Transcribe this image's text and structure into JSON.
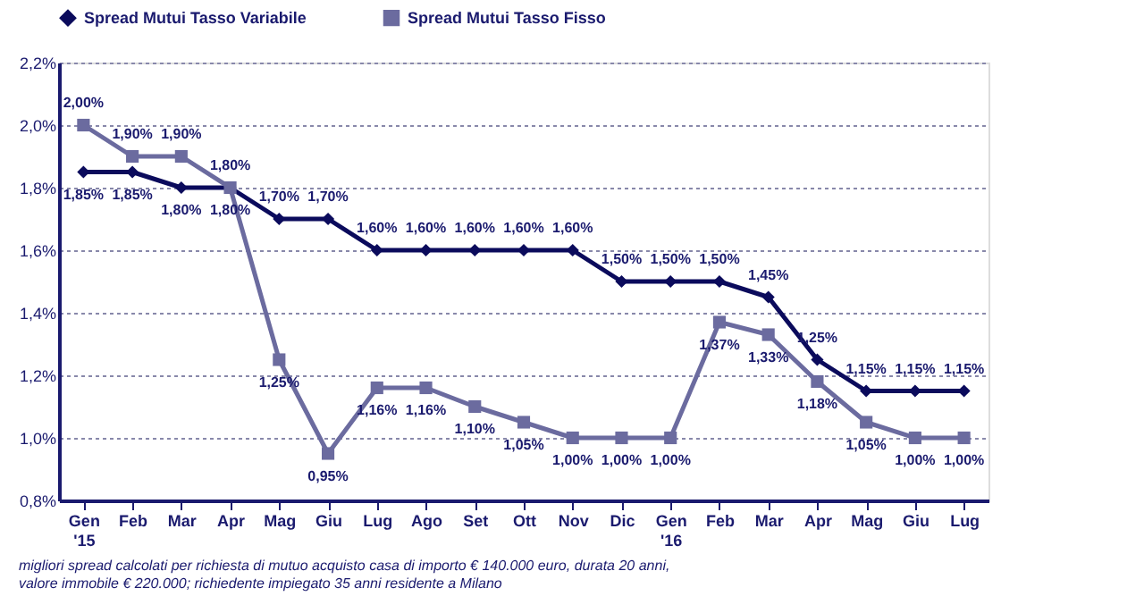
{
  "chart_data": {
    "type": "line",
    "categories": [
      "Gen\n'15",
      "Feb",
      "Mar",
      "Apr",
      "Mag",
      "Giu",
      "Lug",
      "Ago",
      "Set",
      "Ott",
      "Nov",
      "Dic",
      "Gen\n'16",
      "Feb",
      "Mar",
      "Apr",
      "Mag",
      "Giu",
      "Lug"
    ],
    "series": [
      {
        "name": "Spread Mutui Tasso Variabile",
        "color": "#0b0b5c",
        "marker": "diamond",
        "values": [
          1.85,
          1.85,
          1.8,
          1.8,
          1.7,
          1.7,
          1.6,
          1.6,
          1.6,
          1.6,
          1.6,
          1.5,
          1.5,
          1.5,
          1.45,
          1.25,
          1.15,
          1.15,
          1.15
        ],
        "value_labels": [
          "1,85%",
          "1,85%",
          "1,80%",
          "1,80%",
          "1,70%",
          "1,70%",
          "1,60%",
          "1,60%",
          "1,60%",
          "1,60%",
          "1,60%",
          "1,50%",
          "1,50%",
          "1,50%",
          "1,45%",
          "1,25%",
          "1,15%",
          "1,15%",
          "1,15%"
        ]
      },
      {
        "name": "Spread Mutui Tasso Fisso",
        "color": "#6b6b9f",
        "marker": "square",
        "values": [
          2.0,
          1.9,
          1.9,
          1.8,
          1.25,
          0.95,
          1.16,
          1.16,
          1.1,
          1.05,
          1.0,
          1.0,
          1.0,
          1.37,
          1.33,
          1.18,
          1.05,
          1.0,
          1.0
        ],
        "value_labels": [
          "2,00%",
          "1,90%",
          "1,90%",
          "1,80%",
          "1,25%",
          "0,95%",
          "1,16%",
          "1,16%",
          "1,10%",
          "1,05%",
          "1,00%",
          "1,00%",
          "1,00%",
          "1,37%",
          "1,33%",
          "1,18%",
          "1,05%",
          "1,00%",
          "1,00%"
        ]
      }
    ],
    "ylim": [
      0.8,
      2.2
    ],
    "yticks": [
      {
        "value": 0.8,
        "label": "0,8%"
      },
      {
        "value": 1.0,
        "label": "1,0%"
      },
      {
        "value": 1.2,
        "label": "1,2%"
      },
      {
        "value": 1.4,
        "label": "1,4%"
      },
      {
        "value": 1.6,
        "label": "1,6%"
      },
      {
        "value": 1.8,
        "label": "1,8%"
      },
      {
        "value": 2.0,
        "label": "2,0%"
      },
      {
        "value": 2.2,
        "label": "2,2%"
      }
    ],
    "grid": "y",
    "legend": "top",
    "line_style": "solid",
    "annotations": [
      "migliori spread calcolati per richiesta di mutuo acquisto casa di importo € 140.000 euro, durata 20 anni,",
      "valore immobile € 220.000; richiedente impiegato 35 anni residente a Milano"
    ]
  }
}
